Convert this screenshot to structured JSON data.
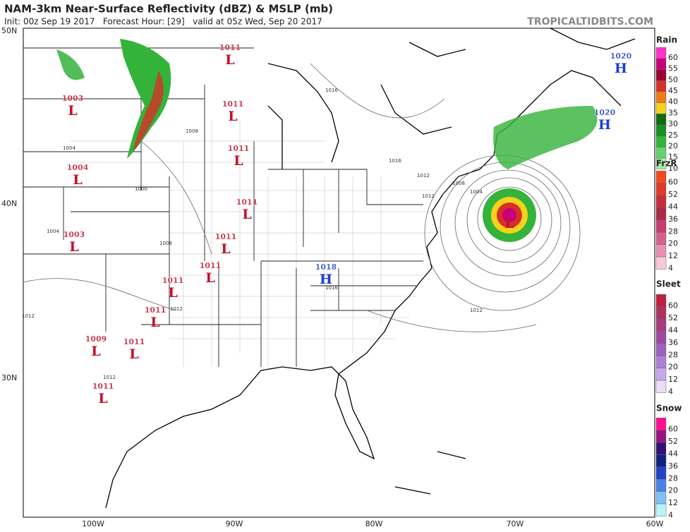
{
  "header": {
    "title": "NAM-3km Near-Surface Reflectivity (dBZ) & MSLP (mb)",
    "subtitle": "Init: 00z Sep 19 2017   Forecast Hour: [29]   valid at 05z Wed, Sep 20 2017",
    "site": "TROPICALTIDBITS.COM"
  },
  "map": {
    "lat_labels": [
      "50N",
      "40N",
      "30N"
    ],
    "lon_labels": [
      "100W",
      "90W",
      "80W",
      "70W",
      "60W"
    ],
    "pressure_centers": [
      {
        "label": "1011",
        "letter": "L"
      },
      {
        "label": "1003",
        "letter": "L"
      },
      {
        "label": "1011",
        "letter": "L"
      },
      {
        "label": "1011",
        "letter": "L"
      },
      {
        "label": "1004",
        "letter": "L"
      },
      {
        "label": "1011",
        "letter": "L"
      },
      {
        "label": "1003",
        "letter": "L"
      },
      {
        "label": "1011",
        "letter": "L"
      },
      {
        "label": "1011",
        "letter": "L"
      },
      {
        "label": "1011",
        "letter": "L"
      },
      {
        "label": "1011",
        "letter": "L"
      },
      {
        "label": "1009",
        "letter": "L"
      },
      {
        "label": "1011",
        "letter": "L"
      },
      {
        "label": "1011",
        "letter": "L"
      },
      {
        "label": "1018",
        "letter": "H"
      },
      {
        "label": "1020",
        "letter": "H"
      },
      {
        "label": "1020",
        "letter": "H"
      },
      {
        "letter": "L"
      }
    ],
    "isobar_labels": [
      "1016",
      "1016",
      "1012",
      "1008",
      "1004",
      "1000",
      "1004",
      "1008",
      "1012",
      "1016",
      "1012",
      "1012",
      "1008",
      "1012",
      "1004",
      "1012"
    ]
  },
  "legends": [
    {
      "title": "Rain",
      "ticks": [
        60,
        55,
        50,
        45,
        40,
        35,
        30,
        25,
        20,
        15,
        10
      ],
      "colors": [
        "#ff33cc",
        "#c8007a",
        "#9a0030",
        "#d6302a",
        "#f07a1a",
        "#f5d21c",
        "#0e6b12",
        "#188f1e",
        "#33b33a",
        "#66d070",
        "#a8ecaa"
      ]
    },
    {
      "title": "FrzR",
      "ticks": [
        60,
        52,
        44,
        36,
        28,
        20,
        12,
        4
      ],
      "colors": [
        "#f04a20",
        "#e03a2a",
        "#c82c3c",
        "#b02848",
        "#c83c70",
        "#d86090",
        "#e890b0",
        "#f8c8d8"
      ]
    },
    {
      "title": "Sleet",
      "ticks": [
        60,
        52,
        44,
        36,
        28,
        20,
        12,
        4
      ],
      "colors": [
        "#c02040",
        "#b03060",
        "#a83c80",
        "#9c48a0",
        "#9e60c0",
        "#b080d8",
        "#c8a8ea",
        "#eadcf8"
      ]
    },
    {
      "title": "Snow",
      "ticks": [
        60,
        52,
        44,
        36,
        28,
        20,
        12,
        4
      ],
      "colors": [
        "#ff1090",
        "#9a1080",
        "#301070",
        "#102080",
        "#2040c8",
        "#4c80e8",
        "#80c0f4",
        "#b8f4fc"
      ]
    }
  ]
}
